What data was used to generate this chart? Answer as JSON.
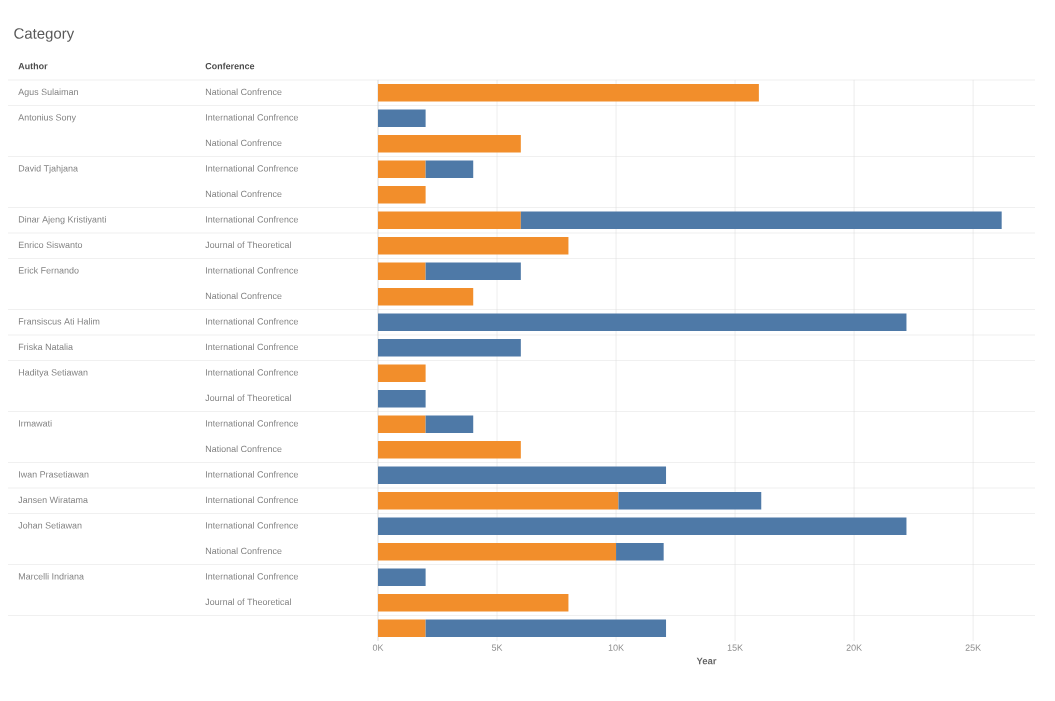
{
  "chart_data": {
    "type": "bar",
    "orientation": "horizontal",
    "stacked": true,
    "title": "Category",
    "xlabel": "Year",
    "y2_categories": [
      "Agus Sulaiman",
      "Antonius Sony",
      null,
      "David Tjahjana",
      null,
      "Dinar Ajeng Kristiyanti",
      "Enrico Siswanto",
      "Erick Fernando",
      null,
      "Fransiscus Ati Halim",
      "Friska Natalia",
      "Haditya Setiawan",
      null,
      "Irmawati",
      null,
      "Iwan Prasetiawan",
      "Jansen Wiratama",
      "Johan Setiawan",
      null,
      "Marcelli Indriana",
      null,
      null
    ],
    "categories": [
      "National Confrence",
      "International Confrence",
      "National Confrence",
      "International Confrence",
      "National Confrence",
      "International Confrence",
      "Journal of Theoretical",
      "International Confrence",
      "National Confrence",
      "International Confrence",
      "International Confrence",
      "International Confrence",
      "Journal of Theoretical",
      "International Confrence",
      "National Confrence",
      "International Confrence",
      "International Confrence",
      "International Confrence",
      "National Confrence",
      "International Confrence",
      "Journal of Theoretical",
      null
    ],
    "series": [
      {
        "color": "#f28e2b",
        "values": [
          16000,
          null,
          6000,
          2000,
          2000,
          6000,
          8000,
          2000,
          4000,
          null,
          null,
          2000,
          null,
          2000,
          6000,
          null,
          10100,
          null,
          10000,
          null,
          8000,
          2000
        ]
      },
      {
        "color": "#4e79a7",
        "values": [
          null,
          2000,
          null,
          2000,
          null,
          20200,
          null,
          4000,
          null,
          22200,
          6000,
          null,
          2000,
          2000,
          null,
          12100,
          6000,
          22200,
          2000,
          2000,
          null,
          10100
        ]
      }
    ],
    "xlim": [
      0,
      27600
    ],
    "xticks": [
      {
        "value": 0,
        "label": "0K"
      },
      {
        "value": 5000,
        "label": "5K"
      },
      {
        "value": 10000,
        "label": "10K"
      },
      {
        "value": 15000,
        "label": "15K"
      },
      {
        "value": 20000,
        "label": "20K"
      },
      {
        "value": 25000,
        "label": "25K"
      }
    ],
    "grid": "x",
    "annotations": [
      "Author",
      "Conference"
    ]
  }
}
